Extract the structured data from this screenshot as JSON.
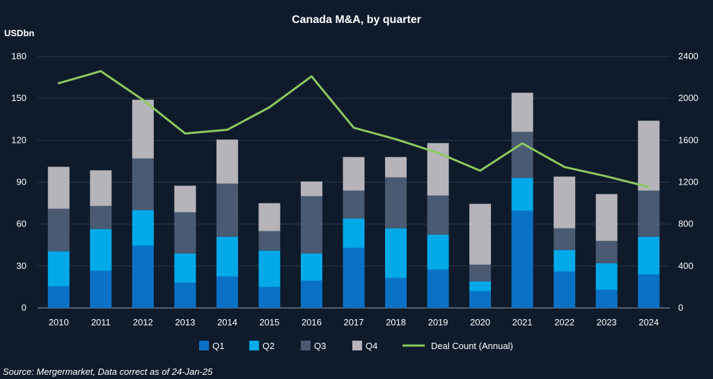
{
  "chart_data": {
    "type": "bar",
    "stacked": true,
    "title": "Canada M&A, by quarter",
    "ylabel_left": "USDbn",
    "categories": [
      "2010",
      "2011",
      "2012",
      "2013",
      "2014",
      "2015",
      "2016",
      "2017",
      "2018",
      "2019",
      "2020",
      "2021",
      "2022",
      "2023",
      "2024"
    ],
    "series": [
      {
        "name": "Q1",
        "color": "#0a72c6",
        "values": [
          15.5,
          26.5,
          44.5,
          18,
          22.5,
          15,
          19.5,
          43,
          21.5,
          27.5,
          12,
          69.5,
          26,
          13,
          24
        ]
      },
      {
        "name": "Q2",
        "color": "#00a9e8",
        "values": [
          25,
          30,
          25.5,
          21,
          28.5,
          26,
          19.5,
          21,
          35.5,
          25,
          7,
          23.5,
          15.5,
          19,
          27
        ]
      },
      {
        "name": "Q3",
        "color": "#4a5a72",
        "values": [
          30.5,
          16.5,
          37,
          29.5,
          38,
          14,
          41,
          20,
          36.5,
          28,
          12,
          33,
          15.5,
          16,
          33
        ]
      },
      {
        "name": "Q4",
        "color": "#b6b4ba",
        "values": [
          30,
          25.5,
          42,
          19,
          31.5,
          20,
          10.5,
          24,
          14.5,
          37.5,
          43.5,
          28,
          37,
          33.5,
          50
        ]
      }
    ],
    "line_series": {
      "name": "Deal Count (Annual)",
      "color": "#8dc860",
      "axis": "right",
      "values": [
        2145,
        2260,
        1985,
        1665,
        1700,
        1915,
        2210,
        1720,
        1610,
        1480,
        1310,
        1570,
        1345,
        1255,
        1155
      ]
    },
    "y_left": {
      "min": 0,
      "max": 180,
      "ticks": [
        "0",
        "30",
        "60",
        "90",
        "120",
        "150",
        "180"
      ]
    },
    "y_right": {
      "min": 0,
      "max": 2400,
      "ticks": [
        "0",
        "400",
        "800",
        "1200",
        "1600",
        "2000",
        "2400"
      ]
    },
    "grid": true,
    "legend_position": "bottom",
    "source": "Source: Mergermarket, Data correct as of 24-Jan-25"
  }
}
